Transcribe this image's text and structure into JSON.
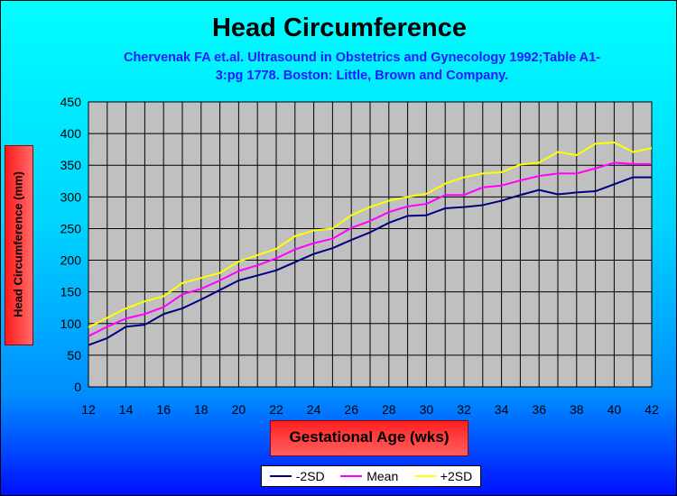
{
  "chart_data": {
    "type": "line",
    "title": "Head Circumference",
    "subtitle_line1": "Chervenak FA et.al. Ultrasound in Obstetrics and Gynecology 1992;Table A1-",
    "subtitle_line2": "3:pg 1778. Boston: Little, Brown and Company.",
    "xlabel": "Gestational Age (wks)",
    "ylabel": "Head Circumference (mm)",
    "xlim": [
      12,
      42
    ],
    "ylim": [
      0,
      450
    ],
    "x_ticks": [
      12,
      14,
      16,
      18,
      20,
      22,
      24,
      26,
      28,
      30,
      32,
      34,
      36,
      38,
      40,
      42
    ],
    "y_ticks": [
      0,
      50,
      100,
      150,
      200,
      250,
      300,
      350,
      400,
      450
    ],
    "grid": true,
    "legend_position": "bottom",
    "plot_background": "#c0c0c0",
    "x": [
      12,
      13,
      14,
      15,
      16,
      17,
      18,
      19,
      20,
      21,
      22,
      23,
      24,
      25,
      26,
      27,
      28,
      29,
      30,
      31,
      32,
      33,
      34,
      35,
      36,
      37,
      38,
      39,
      40,
      41,
      42
    ],
    "series": [
      {
        "name": "-2SD",
        "color": "#000080",
        "values": [
          66,
          77,
          95,
          98,
          115,
          124,
          138,
          153,
          168,
          176,
          184,
          197,
          210,
          219,
          232,
          244,
          259,
          270,
          271,
          282,
          284,
          287,
          294,
          303,
          311,
          304,
          307,
          309,
          320,
          331,
          331
        ]
      },
      {
        "name": "Mean",
        "color": "#ff00ff",
        "values": [
          80,
          95,
          108,
          115,
          126,
          146,
          155,
          168,
          183,
          192,
          203,
          217,
          227,
          234,
          251,
          262,
          276,
          285,
          289,
          303,
          303,
          315,
          318,
          326,
          333,
          337,
          337,
          345,
          354,
          352,
          352
        ]
      },
      {
        "name": "+2SD",
        "color": "#ffff00",
        "values": [
          94,
          109,
          124,
          135,
          143,
          164,
          172,
          180,
          198,
          208,
          218,
          238,
          247,
          250,
          271,
          284,
          294,
          300,
          305,
          321,
          331,
          337,
          339,
          351,
          354,
          371,
          366,
          384,
          386,
          371,
          377
        ]
      }
    ]
  }
}
